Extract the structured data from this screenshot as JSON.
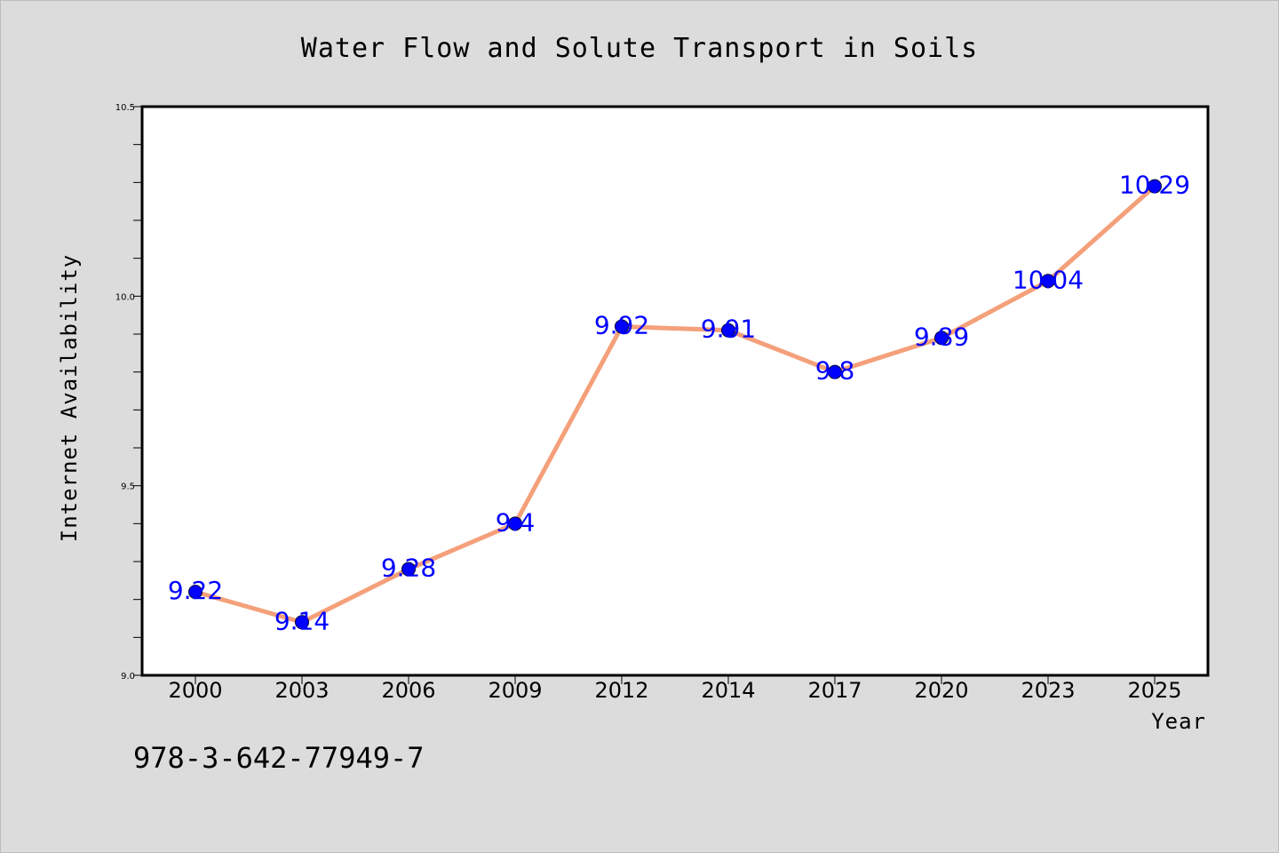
{
  "chart_data": {
    "type": "line",
    "title": "Water Flow and Solute Transport in Soils",
    "xlabel": "Year",
    "ylabel": "Internet Availability",
    "categories": [
      "2000",
      "2003",
      "2006",
      "2009",
      "2012",
      "2014",
      "2017",
      "2020",
      "2023",
      "2025"
    ],
    "series": [
      {
        "values": [
          9.22,
          9.14,
          9.28,
          9.4,
          9.92,
          9.91,
          9.8,
          9.89,
          10.04,
          10.29
        ],
        "data_labels": [
          "9.22",
          "9.14",
          "9.28",
          "9.4",
          "9.92",
          "9.91",
          "9.8",
          "9.89",
          "10.04",
          "10.29"
        ]
      }
    ],
    "ylim": [
      9.0,
      10.5
    ],
    "yticks": [
      "9.0",
      "9.5",
      "10.0",
      "10.5"
    ],
    "grid": false,
    "line_color": "#f4a07a",
    "marker_color": "#0000ff"
  },
  "footer": {
    "isbn": "978-3-642-77949-7"
  }
}
